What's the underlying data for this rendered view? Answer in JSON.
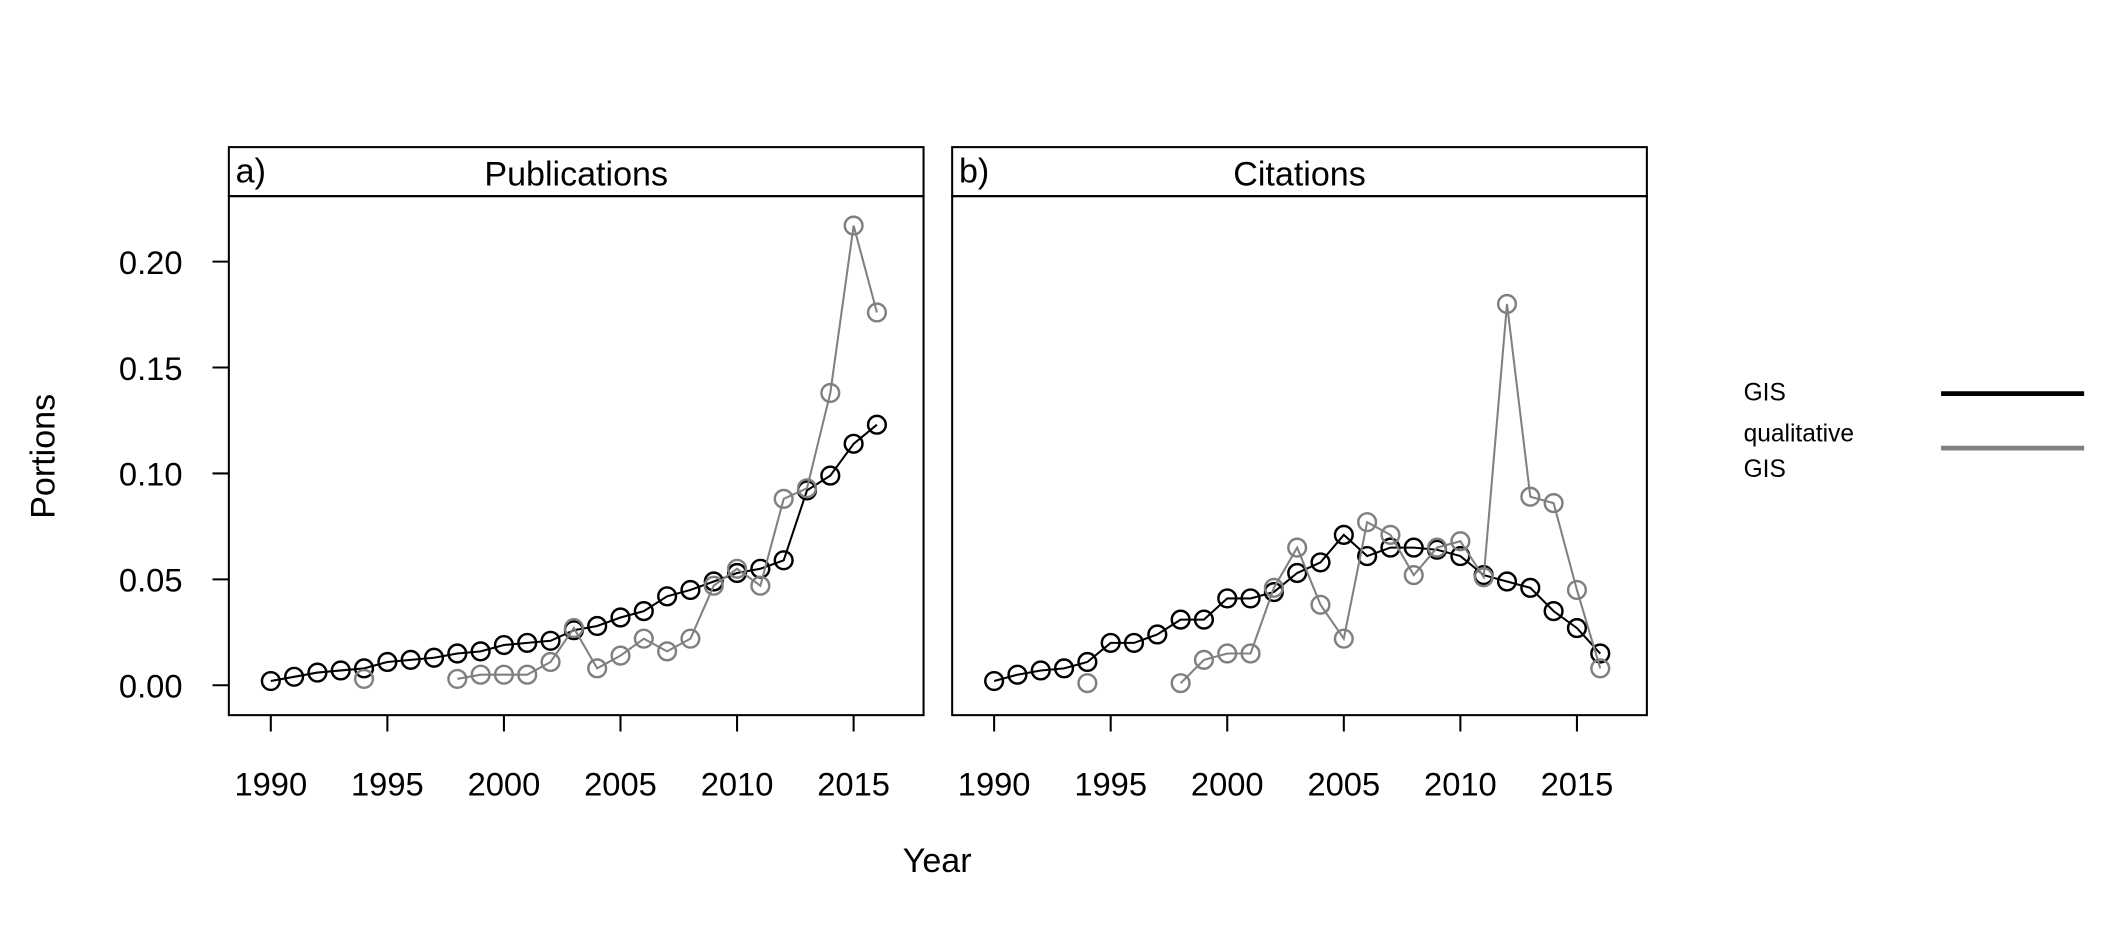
{
  "chart_data": [
    {
      "type": "line",
      "panel_label": "a)",
      "title": "Publications",
      "x": [
        1990,
        1991,
        1992,
        1993,
        1994,
        1995,
        1996,
        1997,
        1998,
        1999,
        2000,
        2001,
        2002,
        2003,
        2004,
        2005,
        2006,
        2007,
        2008,
        2009,
        2010,
        2011,
        2012,
        2013,
        2014,
        2015,
        2016
      ],
      "series": [
        {
          "name": "GIS",
          "color": "#000000",
          "values": [
            0.002,
            0.004,
            0.006,
            0.007,
            0.008,
            0.011,
            0.012,
            0.013,
            0.015,
            0.016,
            0.019,
            0.02,
            0.021,
            0.026,
            0.028,
            0.032,
            0.035,
            0.042,
            0.045,
            0.049,
            0.053,
            0.055,
            0.059,
            0.092,
            0.099,
            0.114,
            0.123
          ]
        },
        {
          "name": "qualitative GIS",
          "color": "#808080",
          "values": [
            null,
            null,
            null,
            null,
            0.003,
            null,
            null,
            null,
            0.003,
            0.005,
            0.005,
            0.005,
            0.011,
            0.027,
            0.008,
            0.014,
            0.022,
            0.016,
            0.022,
            0.047,
            0.055,
            0.047,
            0.088,
            0.093,
            0.138,
            0.217,
            0.176
          ]
        }
      ],
      "xlim": [
        1988.2,
        2018
      ],
      "xticks": [
        1990,
        1995,
        2000,
        2005,
        2010,
        2015
      ],
      "ylim": [
        -0.0141,
        0.2309
      ],
      "yticks": [
        {
          "value": 0,
          "label": "0.00"
        },
        0.05,
        {
          "value": 0.1,
          "label": "0.10"
        },
        0.15,
        {
          "value": 0.2,
          "label": "0.20"
        }
      ]
    },
    {
      "type": "line",
      "panel_label": "b)",
      "title": "Citations",
      "x": [
        1990,
        1991,
        1992,
        1993,
        1994,
        1995,
        1996,
        1997,
        1998,
        1999,
        2000,
        2001,
        2002,
        2003,
        2004,
        2005,
        2006,
        2007,
        2008,
        2009,
        2010,
        2011,
        2012,
        2013,
        2014,
        2015,
        2016
      ],
      "series": [
        {
          "name": "GIS",
          "color": "#000000",
          "values": [
            0.002,
            0.005,
            0.007,
            0.008,
            0.011,
            0.02,
            0.02,
            0.024,
            0.031,
            0.031,
            0.041,
            0.041,
            0.044,
            0.053,
            0.058,
            0.071,
            0.061,
            0.065,
            0.065,
            0.064,
            0.061,
            0.052,
            0.049,
            0.046,
            0.035,
            0.027,
            0.015
          ]
        },
        {
          "name": "qualitative GIS",
          "color": "#808080",
          "values": [
            null,
            null,
            null,
            null,
            0.001,
            null,
            null,
            null,
            0.001,
            0.012,
            0.015,
            0.015,
            0.046,
            0.065,
            0.038,
            0.022,
            0.077,
            0.071,
            0.052,
            0.065,
            0.068,
            0.051,
            0.18,
            0.089,
            0.086,
            0.045,
            0.008
          ]
        }
      ],
      "xlim": [
        1988.2,
        2018
      ],
      "xticks": [
        1990,
        1995,
        2000,
        2005,
        2010,
        2015
      ],
      "ylim": [
        -0.0141,
        0.2309
      ]
    }
  ],
  "xlabel": "Year",
  "ylabel": "Portions"
}
